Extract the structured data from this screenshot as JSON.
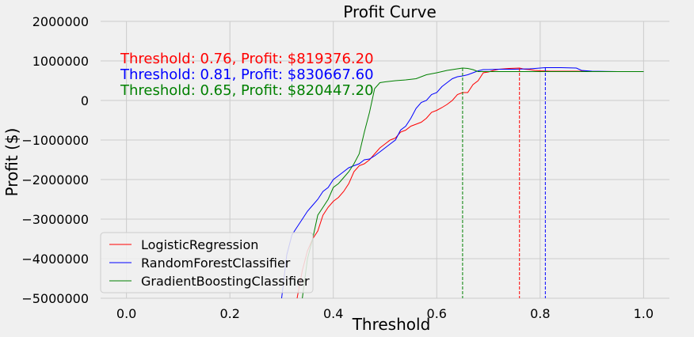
{
  "chart_data": {
    "type": "line",
    "title": "Profit Curve",
    "xlabel": "Threshold",
    "ylabel": "Profit ($)",
    "xlim": [
      -0.05,
      1.05
    ],
    "ylim": [
      -5000000,
      2000000
    ],
    "x_ticks": [
      0.0,
      0.2,
      0.4,
      0.6,
      0.8,
      1.0
    ],
    "x_tick_labels": [
      "0.0",
      "0.2",
      "0.4",
      "0.6",
      "0.8",
      "1.0"
    ],
    "y_ticks": [
      -5000000,
      -4000000,
      -3000000,
      -2000000,
      -1000000,
      0,
      1000000,
      2000000
    ],
    "y_tick_labels": [
      "−5000000",
      "−4000000",
      "−3000000",
      "−2000000",
      "−1000000",
      "0",
      "1000000",
      "2000000"
    ],
    "grid": true,
    "legend_position": "lower-left",
    "series": [
      {
        "name": "LogisticRegression",
        "color": "#ff0000",
        "x": [
          0.33,
          0.34,
          0.35,
          0.36,
          0.37,
          0.38,
          0.39,
          0.4,
          0.41,
          0.42,
          0.43,
          0.44,
          0.45,
          0.46,
          0.47,
          0.48,
          0.49,
          0.5,
          0.51,
          0.52,
          0.53,
          0.54,
          0.55,
          0.56,
          0.57,
          0.58,
          0.59,
          0.6,
          0.61,
          0.62,
          0.63,
          0.64,
          0.65,
          0.66,
          0.67,
          0.68,
          0.69,
          0.7,
          0.71,
          0.72,
          0.73,
          0.74,
          0.75,
          0.76,
          0.77,
          0.78,
          0.79,
          0.8,
          0.82,
          0.85,
          0.88,
          0.9,
          0.95,
          1.0
        ],
        "y": [
          -5000000,
          -4300000,
          -3800000,
          -3500000,
          -3300000,
          -2900000,
          -2700000,
          -2550000,
          -2450000,
          -2300000,
          -2100000,
          -1800000,
          -1650000,
          -1600000,
          -1500000,
          -1350000,
          -1200000,
          -1100000,
          -1000000,
          -950000,
          -800000,
          -750000,
          -650000,
          -600000,
          -550000,
          -450000,
          -300000,
          -250000,
          -180000,
          -100000,
          0,
          150000,
          200000,
          200000,
          400000,
          500000,
          700000,
          720000,
          760000,
          790000,
          800000,
          810000,
          815000,
          819376.2,
          790000,
          780000,
          760000,
          750000,
          740000,
          740000,
          740000,
          730000,
          730000,
          730000
        ]
      },
      {
        "name": "RandomForestClassifier",
        "color": "#0000ff",
        "x": [
          0.3,
          0.31,
          0.32,
          0.33,
          0.34,
          0.35,
          0.36,
          0.37,
          0.38,
          0.39,
          0.4,
          0.41,
          0.42,
          0.43,
          0.44,
          0.45,
          0.46,
          0.47,
          0.48,
          0.49,
          0.5,
          0.51,
          0.52,
          0.53,
          0.54,
          0.55,
          0.56,
          0.57,
          0.58,
          0.59,
          0.6,
          0.61,
          0.62,
          0.63,
          0.64,
          0.65,
          0.66,
          0.67,
          0.68,
          0.69,
          0.7,
          0.72,
          0.75,
          0.78,
          0.81,
          0.84,
          0.87,
          0.88,
          0.9,
          0.95,
          1.0
        ],
        "y": [
          -5000000,
          -3900000,
          -3400000,
          -3200000,
          -3000000,
          -2800000,
          -2650000,
          -2500000,
          -2300000,
          -2200000,
          -2000000,
          -1900000,
          -1800000,
          -1700000,
          -1650000,
          -1600000,
          -1500000,
          -1480000,
          -1400000,
          -1300000,
          -1200000,
          -1100000,
          -1000000,
          -750000,
          -650000,
          -450000,
          -200000,
          -50000,
          0,
          150000,
          200000,
          350000,
          450000,
          550000,
          600000,
          620000,
          650000,
          700000,
          750000,
          780000,
          780000,
          790000,
          790000,
          800000,
          830667.6,
          830000,
          820000,
          760000,
          740000,
          730000,
          730000
        ]
      },
      {
        "name": "GradientBoostingClassifier",
        "color": "#008000",
        "x": [
          0.34,
          0.35,
          0.36,
          0.37,
          0.38,
          0.39,
          0.4,
          0.41,
          0.42,
          0.43,
          0.44,
          0.45,
          0.46,
          0.47,
          0.48,
          0.49,
          0.5,
          0.52,
          0.54,
          0.56,
          0.58,
          0.6,
          0.62,
          0.64,
          0.65,
          0.66,
          0.67,
          0.68,
          0.7,
          0.72,
          0.75,
          0.8,
          0.85,
          0.9,
          0.95,
          1.0
        ],
        "y": [
          -5000000,
          -4000000,
          -3500000,
          -2900000,
          -2700000,
          -2500000,
          -2200000,
          -2100000,
          -1950000,
          -1800000,
          -1600000,
          -1350000,
          -800000,
          -300000,
          300000,
          450000,
          470000,
          500000,
          520000,
          550000,
          650000,
          700000,
          760000,
          800000,
          820447.2,
          810000,
          780000,
          730000,
          730000,
          730000,
          730000,
          730000,
          730000,
          730000,
          730000,
          730000
        ]
      }
    ],
    "vlines": [
      {
        "x": 0.76,
        "color": "#ff0000"
      },
      {
        "x": 0.81,
        "color": "#0000ff"
      },
      {
        "x": 0.65,
        "color": "#008000"
      }
    ],
    "annotations": [
      {
        "text": "Threshold: 0.76, Profit: $819376.20",
        "color": "#ff0000"
      },
      {
        "text": "Threshold: 0.81, Profit: $830667.60",
        "color": "#0000ff"
      },
      {
        "text": "Threshold: 0.65, Profit: $820447.20",
        "color": "#008000"
      }
    ]
  }
}
